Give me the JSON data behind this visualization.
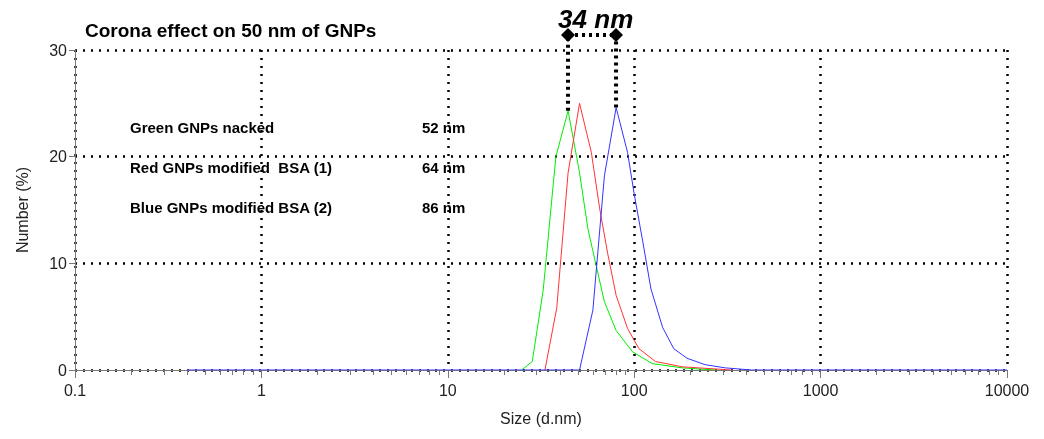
{
  "chart_data": {
    "type": "line",
    "title": "Corona effect on 50 nm of GNPs",
    "xlabel": "Size (d.nm)",
    "ylabel": "Number (%)",
    "log": "x",
    "xlim": [
      0.1,
      10000
    ],
    "xticks": [
      0.1,
      1,
      10,
      100,
      1000,
      10000
    ],
    "ylim": [
      0,
      30
    ],
    "yticks": [
      0,
      10,
      20,
      30
    ],
    "grid": true,
    "marker": "none",
    "line_style": "solid",
    "annotations": [
      "34 nm",
      "Green GNPs nacked",
      "52 nm",
      "Red GNPs modified  BSA (1)",
      "64 nm",
      "Blue GNPs modified BSA (2)",
      "86 nm"
    ],
    "series": [
      {
        "color": "#00ee00",
        "x": [
          24.9,
          28.4,
          32.5,
          38.0,
          44.2,
          50.9,
          56.5,
          62.5,
          69.2,
          80.0,
          98,
          125,
          181,
          272
        ],
        "values": [
          0,
          0.8,
          7.5,
          20.0,
          24.3,
          18.5,
          13.2,
          9.8,
          6.4,
          3.7,
          1.7,
          0.6,
          0.2,
          0
        ]
      },
      {
        "color": "#ff3333",
        "x": [
          33.2,
          38.4,
          44.2,
          50.9,
          58.9,
          65.2,
          72.1,
          80.0,
          92.1,
          106,
          130,
          181,
          333
        ],
        "values": [
          0,
          5.8,
          18.5,
          25.0,
          20.4,
          15.2,
          10.9,
          7.0,
          3.9,
          2.0,
          0.8,
          0.3,
          0
        ]
      },
      {
        "color": "#3333ff",
        "x": [
          0.4,
          50.9,
          60.0,
          69.2,
          80.0,
          92.1,
          100,
          111,
          123,
          142,
          163,
          192,
          240,
          308,
          426,
          10000
        ],
        "values": [
          0,
          0,
          5.6,
          18.2,
          24.6,
          20.4,
          16.5,
          12.1,
          7.6,
          4.0,
          2.0,
          1.1,
          0.5,
          0.2,
          0,
          0
        ]
      }
    ]
  }
}
